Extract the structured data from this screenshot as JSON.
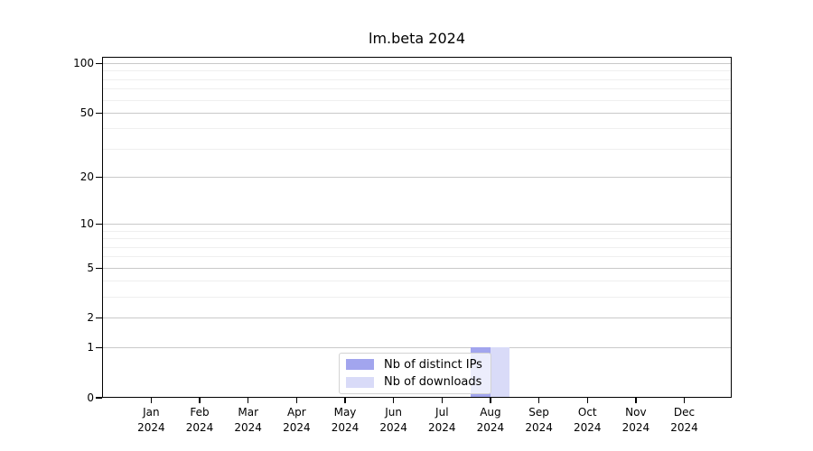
{
  "title": "lm.beta 2024",
  "chart_data": {
    "type": "bar",
    "title": "lm.beta 2024",
    "categories": [
      "Jan 2024",
      "Feb 2024",
      "Mar 2024",
      "Apr 2024",
      "May 2024",
      "Jun 2024",
      "Jul 2024",
      "Aug 2024",
      "Sep 2024",
      "Oct 2024",
      "Nov 2024",
      "Dec 2024"
    ],
    "series": [
      {
        "name": "Nb of distinct IPs",
        "color": "#a2a5ee",
        "values": [
          0,
          0,
          0,
          0,
          0,
          0,
          0,
          1,
          0,
          0,
          0,
          0
        ]
      },
      {
        "name": "Nb of downloads",
        "color": "#d9dbf8",
        "values": [
          0,
          0,
          0,
          0,
          0,
          0,
          0,
          1,
          0,
          0,
          0,
          0
        ]
      }
    ],
    "xlabel": "",
    "ylabel": "",
    "y_scale": "log1p",
    "ylim": [
      0,
      110
    ],
    "y_ticks": [
      0,
      1,
      2,
      5,
      10,
      20,
      50,
      100
    ],
    "y_minor_gridlines": [
      3,
      4,
      6,
      7,
      8,
      9,
      30,
      40,
      60,
      70,
      80,
      90
    ],
    "grid": "horizontal",
    "legend_position": "lower center inside"
  },
  "legend": {
    "items": [
      {
        "label": "Nb of distinct IPs",
        "swatch_color": "#a2a5ee"
      },
      {
        "label": "Nb of downloads",
        "swatch_color": "#d9dbf8"
      }
    ]
  },
  "colors": {
    "background": "#ffffff",
    "axis": "#000000",
    "grid_major": "#c9c9c9",
    "grid_minor": "#efefef",
    "legend_border": "#d3d3d3"
  }
}
